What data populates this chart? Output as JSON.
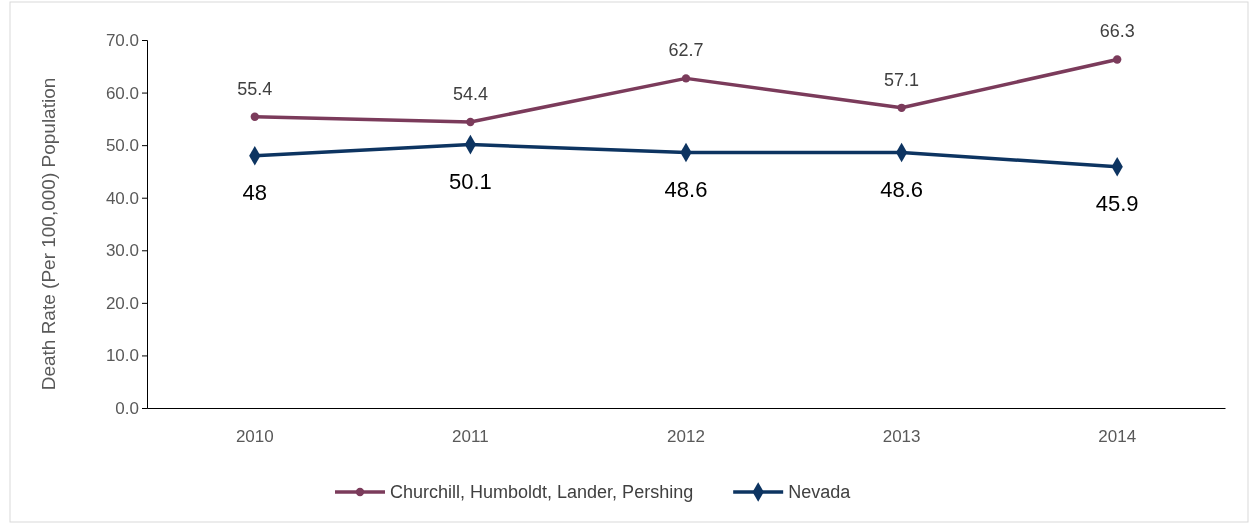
{
  "chart_data": {
    "type": "line",
    "ylabel": "Death Rate (Per 100,000) Population",
    "categories": [
      "2010",
      "2011",
      "2012",
      "2013",
      "2014"
    ],
    "series": [
      {
        "name": "Churchill, Humboldt, Lander, Pershing",
        "color": "#7b3b5b",
        "marker": "circle",
        "values": [
          55.4,
          54.4,
          62.7,
          57.1,
          66.3
        ]
      },
      {
        "name": "Nevada",
        "color": "#0d3461",
        "marker": "diamond",
        "values": [
          48,
          50.1,
          48.6,
          48.6,
          45.9
        ]
      }
    ],
    "ylim": [
      0,
      70
    ],
    "yticks": [
      {
        "value": 0,
        "label": "0.0"
      },
      {
        "value": 10,
        "label": "10.0"
      },
      {
        "value": 20,
        "label": "20.0"
      },
      {
        "value": 30,
        "label": "30.0"
      },
      {
        "value": 40,
        "label": "40.0"
      },
      {
        "value": 50,
        "label": "50.0"
      },
      {
        "value": 60,
        "label": "60.0"
      },
      {
        "value": 70,
        "label": "70.0"
      }
    ],
    "grid": false,
    "legend": "bottom",
    "data_labels": true,
    "line_style": "solid"
  }
}
